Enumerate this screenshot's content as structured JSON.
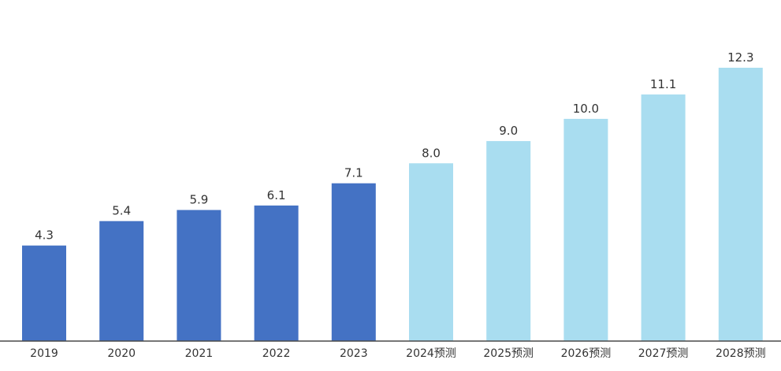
{
  "chart_data": {
    "type": "bar",
    "title": "",
    "xlabel": "",
    "ylabel": "",
    "categories": [
      "2019",
      "2020",
      "2021",
      "2022",
      "2023",
      "2024预测",
      "2025预测",
      "2026预测",
      "2027预测",
      "2028预测"
    ],
    "values": [
      4.3,
      5.4,
      5.9,
      6.1,
      7.1,
      8.0,
      9.0,
      10.0,
      11.1,
      12.3
    ],
    "value_labels": [
      "4.3",
      "5.4",
      "5.9",
      "6.1",
      "7.1",
      "8.0",
      "9.0",
      "10.0",
      "11.1",
      "12.3"
    ],
    "ylim": [
      0,
      12.3
    ],
    "grid": false,
    "legend": "none",
    "colors": {
      "actual": "#4472C4",
      "forecast": "#A9DDF0",
      "axis": "#4a4a4a",
      "text": "#333333"
    },
    "bar_kind": [
      "actual",
      "actual",
      "actual",
      "actual",
      "actual",
      "forecast",
      "forecast",
      "forecast",
      "forecast",
      "forecast"
    ]
  }
}
